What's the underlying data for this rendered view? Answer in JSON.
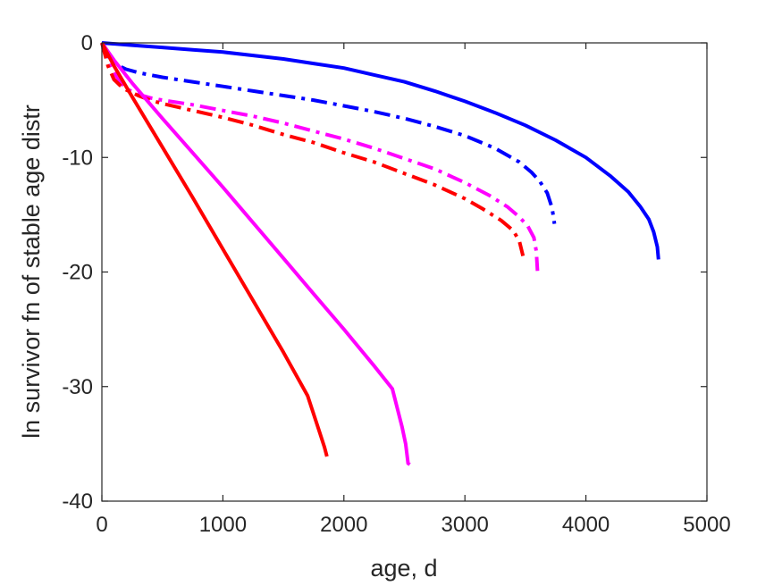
{
  "chart_data": {
    "type": "line",
    "xlabel": "age, d",
    "ylabel": "ln survivor fn of stable age distr",
    "xlim": [
      0,
      5000
    ],
    "ylim": [
      -40,
      0
    ],
    "xticks": [
      0,
      1000,
      2000,
      3000,
      4000,
      5000
    ],
    "yticks": [
      -40,
      -30,
      -20,
      -10,
      0
    ],
    "xtick_labels": [
      "0",
      "1000",
      "2000",
      "3000",
      "4000",
      "5000"
    ],
    "ytick_labels": [
      "-40",
      "-30",
      "-20",
      "-10",
      "0"
    ],
    "grid": false,
    "legend": "none",
    "series": [
      {
        "color": "#0000ff",
        "style": "solid",
        "x": [
          0,
          250,
          500,
          750,
          1000,
          1250,
          1500,
          1750,
          2000,
          2250,
          2500,
          2750,
          3000,
          3250,
          3500,
          3750,
          4000,
          4200,
          4350,
          4450,
          4520,
          4560,
          4590,
          4600
        ],
        "y": [
          0,
          -0.2,
          -0.4,
          -0.6,
          -0.8,
          -1.1,
          -1.4,
          -1.8,
          -2.2,
          -2.8,
          -3.4,
          -4.2,
          -5.1,
          -6.1,
          -7.2,
          -8.5,
          -10.0,
          -11.6,
          -13.0,
          -14.3,
          -15.4,
          -16.5,
          -17.8,
          -18.9
        ]
      },
      {
        "color": "#0000ff",
        "style": "dashdot",
        "x": [
          0,
          50,
          100,
          200,
          300,
          500,
          750,
          1000,
          1250,
          1500,
          1750,
          2000,
          2250,
          2500,
          2750,
          3000,
          3250,
          3450,
          3550,
          3620,
          3680,
          3720,
          3740
        ],
        "y": [
          0,
          -1.2,
          -1.8,
          -2.3,
          -2.6,
          -3.0,
          -3.4,
          -3.8,
          -4.2,
          -4.6,
          -5.0,
          -5.5,
          -6.0,
          -6.6,
          -7.3,
          -8.1,
          -9.2,
          -10.4,
          -11.3,
          -12.1,
          -13.1,
          -14.4,
          -15.8
        ]
      },
      {
        "color": "#ff00ff",
        "style": "dashdot",
        "x": [
          0,
          50,
          100,
          150,
          200,
          300,
          400,
          500,
          750,
          1000,
          1250,
          1500,
          1750,
          2000,
          2250,
          2500,
          2750,
          3000,
          3200,
          3350,
          3450,
          3520,
          3570,
          3590,
          3600
        ],
        "y": [
          0,
          -1.5,
          -2.6,
          -3.4,
          -4.0,
          -4.5,
          -4.8,
          -5.0,
          -5.4,
          -5.9,
          -6.4,
          -7.0,
          -7.7,
          -8.4,
          -9.2,
          -10.1,
          -11.0,
          -12.2,
          -13.3,
          -14.3,
          -15.2,
          -16.0,
          -17.0,
          -18.2,
          -19.9
        ]
      },
      {
        "color": "#ff0000",
        "style": "dashdot",
        "x": [
          0,
          50,
          100,
          150,
          200,
          300,
          400,
          500,
          750,
          1000,
          1250,
          1500,
          1750,
          2000,
          2250,
          2500,
          2750,
          3000,
          3150,
          3300,
          3400,
          3450,
          3480
        ],
        "y": [
          0,
          -2.0,
          -3.2,
          -3.7,
          -4.1,
          -4.6,
          -5.0,
          -5.3,
          -5.9,
          -6.5,
          -7.2,
          -8.0,
          -8.7,
          -9.6,
          -10.4,
          -11.4,
          -12.4,
          -13.6,
          -14.5,
          -15.5,
          -16.4,
          -17.3,
          -18.6
        ]
      },
      {
        "color": "#ff00ff",
        "style": "solid",
        "x": [
          0,
          100,
          250,
          500,
          750,
          1000,
          1250,
          1500,
          1750,
          2000,
          2250,
          2400,
          2480,
          2510,
          2530,
          2545
        ],
        "y": [
          0,
          -1.5,
          -3.5,
          -6.6,
          -9.6,
          -12.6,
          -15.7,
          -18.8,
          -21.9,
          -25.0,
          -28.2,
          -30.2,
          -33.5,
          -35.0,
          -36.7,
          -36.8
        ]
      },
      {
        "color": "#ff0000",
        "style": "solid",
        "x": [
          0,
          100,
          250,
          500,
          750,
          1000,
          1250,
          1500,
          1700,
          1800,
          1840,
          1860
        ],
        "y": [
          0,
          -2.0,
          -4.7,
          -9.1,
          -13.5,
          -18.0,
          -22.5,
          -27.0,
          -30.8,
          -34.0,
          -35.3,
          -36.1
        ]
      }
    ]
  }
}
